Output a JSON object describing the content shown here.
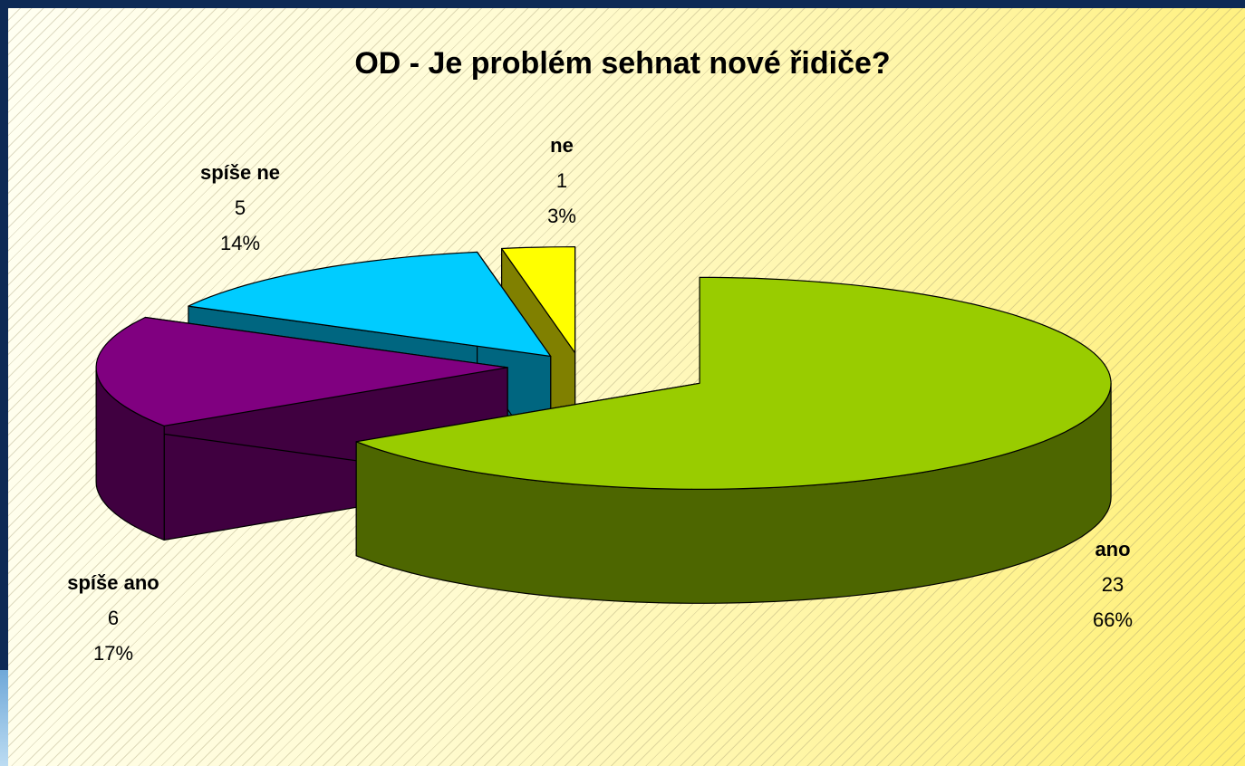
{
  "chart_data": {
    "type": "pie3d",
    "title": "OD - Je problém sehnat nové řidiče?",
    "categories": [
      "ano",
      "spíše ano",
      "spíše ne",
      "ne"
    ],
    "values": [
      23,
      6,
      5,
      1
    ],
    "shares": [
      {
        "value": 66,
        "label": "66%"
      },
      {
        "value": 17,
        "label": "17%"
      },
      {
        "value": 14,
        "label": "14%"
      },
      {
        "value": 3,
        "label": "3%"
      }
    ],
    "colors": [
      "#99cc00",
      "#800080",
      "#00ccff",
      "#ffff00"
    ],
    "side_colors": [
      "#4d6600",
      "#400040",
      "#006680",
      "#808000"
    ]
  }
}
